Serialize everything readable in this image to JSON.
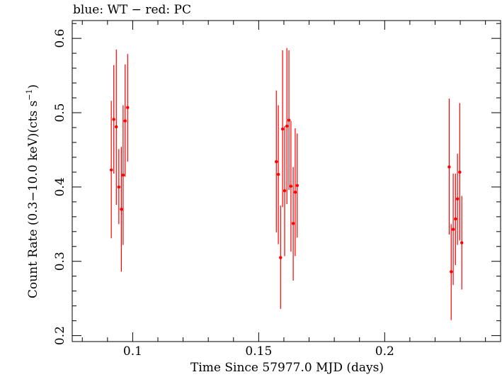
{
  "chart_data": {
    "type": "scatter",
    "title": "blue: WT − red: PC",
    "xlabel": "Time Since 57977.0 MJD (days)",
    "ylabel_main": "Count Rate (0.3−10.0 keV)(cts s",
    "ylabel_sup": "−1",
    "ylabel_end": ")",
    "xlim": [
      0.076,
      0.246
    ],
    "ylim": [
      0.192,
      0.624
    ],
    "x_ticks": [
      0.1,
      0.15,
      0.2
    ],
    "x_tick_labels": [
      "0.1",
      "0.15",
      "0.2"
    ],
    "y_ticks": [
      0.2,
      0.3,
      0.4,
      0.5,
      0.6
    ],
    "y_tick_labels": [
      "0.2",
      "0.3",
      "0.4",
      "0.5",
      "0.6"
    ],
    "series": [
      {
        "color": "#ff0000",
        "points": [
          {
            "x": 0.0915,
            "y": 0.423,
            "ylo": 0.331,
            "yhi": 0.516
          },
          {
            "x": 0.0925,
            "y": 0.491,
            "ylo": 0.418,
            "yhi": 0.564
          },
          {
            "x": 0.0935,
            "y": 0.481,
            "ylo": 0.376,
            "yhi": 0.585
          },
          {
            "x": 0.0945,
            "y": 0.4,
            "ylo": 0.35,
            "yhi": 0.451
          },
          {
            "x": 0.0955,
            "y": 0.37,
            "ylo": 0.286,
            "yhi": 0.454
          },
          {
            "x": 0.0962,
            "y": 0.416,
            "ylo": 0.322,
            "yhi": 0.51
          },
          {
            "x": 0.097,
            "y": 0.489,
            "ylo": 0.414,
            "yhi": 0.565
          },
          {
            "x": 0.098,
            "y": 0.507,
            "ylo": 0.434,
            "yhi": 0.579
          },
          {
            "x": 0.157,
            "y": 0.434,
            "ylo": 0.339,
            "yhi": 0.53
          },
          {
            "x": 0.1578,
            "y": 0.417,
            "ylo": 0.323,
            "yhi": 0.51
          },
          {
            "x": 0.1587,
            "y": 0.305,
            "ylo": 0.236,
            "yhi": 0.375
          },
          {
            "x": 0.1595,
            "y": 0.478,
            "ylo": 0.373,
            "yhi": 0.584
          },
          {
            "x": 0.1603,
            "y": 0.395,
            "ylo": 0.307,
            "yhi": 0.482
          },
          {
            "x": 0.1612,
            "y": 0.482,
            "ylo": 0.377,
            "yhi": 0.587
          },
          {
            "x": 0.162,
            "y": 0.49,
            "ylo": 0.396,
            "yhi": 0.584
          },
          {
            "x": 0.1628,
            "y": 0.401,
            "ylo": 0.313,
            "yhi": 0.489
          },
          {
            "x": 0.1637,
            "y": 0.351,
            "ylo": 0.274,
            "yhi": 0.427
          },
          {
            "x": 0.1645,
            "y": 0.393,
            "ylo": 0.307,
            "yhi": 0.479
          },
          {
            "x": 0.1653,
            "y": 0.402,
            "ylo": 0.332,
            "yhi": 0.472
          },
          {
            "x": 0.2256,
            "y": 0.427,
            "ylo": 0.336,
            "yhi": 0.519
          },
          {
            "x": 0.2264,
            "y": 0.286,
            "ylo": 0.221,
            "yhi": 0.35
          },
          {
            "x": 0.2272,
            "y": 0.343,
            "ylo": 0.268,
            "yhi": 0.418
          },
          {
            "x": 0.2281,
            "y": 0.357,
            "ylo": 0.295,
            "yhi": 0.418
          },
          {
            "x": 0.2289,
            "y": 0.384,
            "ylo": 0.322,
            "yhi": 0.445
          },
          {
            "x": 0.2298,
            "y": 0.42,
            "ylo": 0.328,
            "yhi": 0.513
          },
          {
            "x": 0.2306,
            "y": 0.325,
            "ylo": 0.262,
            "yhi": 0.388
          }
        ]
      }
    ]
  }
}
